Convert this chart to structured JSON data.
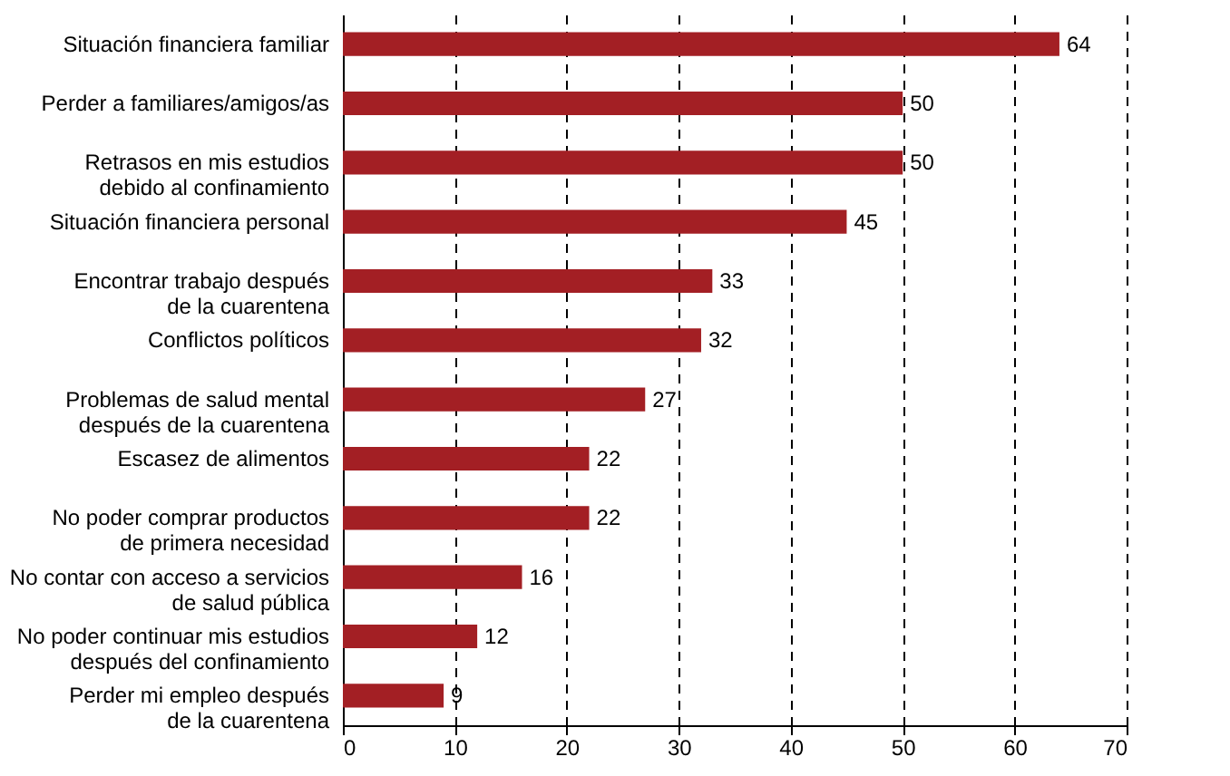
{
  "chart_data": {
    "type": "bar",
    "orientation": "horizontal",
    "categories": [
      "Situación financiera familiar",
      "Perder a familiares/amigos/as",
      "Retrasos en mis estudios\ndebido al confinamiento",
      "Situación financiera personal",
      "Encontrar trabajo después\nde la cuarentena",
      "Conflictos políticos",
      "Problemas de salud mental\ndespués de la cuarentena",
      "Escasez de alimentos",
      "No poder comprar productos\nde primera necesidad",
      "No contar con acceso a servicios\nde salud pública",
      "No poder continuar mis estudios\ndespués del confinamiento",
      "Perder mi empleo después\nde la cuarentena"
    ],
    "values": [
      64,
      50,
      50,
      45,
      33,
      32,
      27,
      22,
      22,
      16,
      12,
      9
    ],
    "color": "#a31f24",
    "xlim": [
      0,
      70
    ],
    "xticks": [
      0,
      10,
      20,
      30,
      40,
      50,
      60,
      70
    ],
    "grid": "x",
    "data_labels": true
  }
}
